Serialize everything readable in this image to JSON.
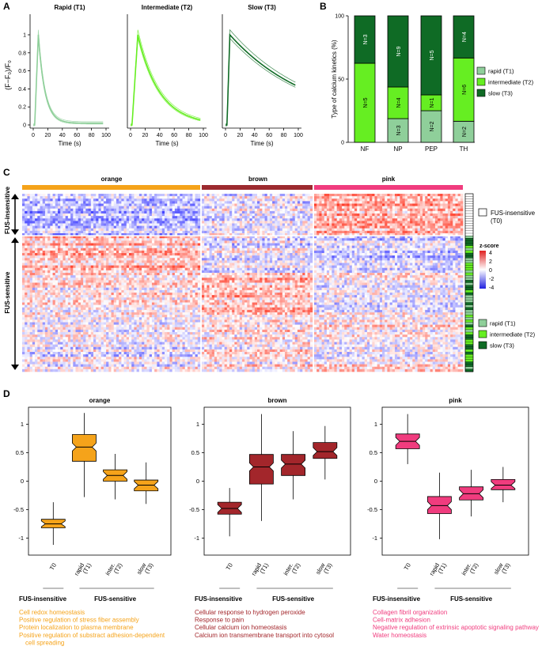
{
  "panels": {
    "A": "A",
    "B": "B",
    "C": "C",
    "D": "D"
  },
  "panel_a": {
    "ylabel": "(F−F₀)/F₀",
    "xlabel": "Time (s)",
    "yticks": [
      "0",
      "0.2",
      "0.4",
      "0.6",
      "0.8",
      "1"
    ],
    "xticks": [
      "0",
      "20",
      "40",
      "60",
      "80",
      "100"
    ],
    "plots": [
      {
        "title": "Rapid (T1)",
        "color": "#8fcf9a",
        "peak_t": 7,
        "decay": 9,
        "plateau": 0.02
      },
      {
        "title": "Intermediate (T2)",
        "color": "#66ee22",
        "peak_t": 10,
        "decay": 30,
        "plateau": 0.0
      },
      {
        "title": "Slow (T3)",
        "color": "#0f6b25",
        "peak_t": 6,
        "decay": 110,
        "plateau": 0.0
      }
    ]
  },
  "chart_data": [
    {
      "type": "bar",
      "title": "Type of calcium kinetics",
      "ylabel": "Type of calcium kinetics (%)",
      "yticks": [
        "0",
        "50",
        "100"
      ],
      "ylim": [
        0,
        100
      ],
      "categories": [
        "NF",
        "NP",
        "PEP",
        "TH"
      ],
      "series": [
        {
          "name": "rapid (T1)",
          "color": "#8fcf9a",
          "values": [
            0,
            18.75,
            25,
            16.67
          ],
          "labels": [
            "",
            "N=3",
            "N=2",
            "N=2"
          ]
        },
        {
          "name": "intermediate (T2)",
          "color": "#66ee22",
          "values": [
            62.5,
            25,
            12.5,
            50
          ],
          "labels": [
            "N=5",
            "N=4",
            "N=1",
            "N=6"
          ]
        },
        {
          "name": "slow (T3)",
          "color": "#0f6b25",
          "values": [
            37.5,
            56.25,
            62.5,
            33.33
          ],
          "labels": [
            "N=3",
            "N=9",
            "N=5",
            "N=4"
          ]
        }
      ]
    },
    {
      "type": "box",
      "title": "orange",
      "color": "#f5a31a",
      "categories": [
        "T0",
        "rapid (T1)",
        "inter. (T2)",
        "slow (T3)"
      ],
      "whisker_low": [
        -1.12,
        -0.28,
        -0.32,
        -0.4
      ],
      "q1": [
        -0.82,
        0.35,
        0.0,
        -0.17
      ],
      "median": [
        -0.75,
        0.6,
        0.1,
        -0.07
      ],
      "q3": [
        -0.67,
        0.82,
        0.2,
        0.02
      ],
      "whisker_high": [
        -0.37,
        1.2,
        0.48,
        0.33
      ],
      "ylim": [
        -1.3,
        1.3
      ],
      "yticks": [
        "-1",
        "-0.5",
        "0",
        "0.5",
        "1"
      ]
    },
    {
      "type": "box",
      "title": "brown",
      "color": "#a3262b",
      "categories": [
        "T0",
        "rapid (T1)",
        "inter. (T2)",
        "slow (T3)"
      ],
      "whisker_low": [
        -0.97,
        -0.7,
        -0.32,
        0.03
      ],
      "q1": [
        -0.58,
        -0.05,
        0.1,
        0.4
      ],
      "median": [
        -0.48,
        0.25,
        0.3,
        0.52
      ],
      "q3": [
        -0.37,
        0.47,
        0.47,
        0.68
      ],
      "whisker_high": [
        -0.12,
        1.18,
        0.88,
        0.97
      ],
      "ylim": [
        -1.3,
        1.3
      ],
      "yticks": [
        "-1",
        "-0.5",
        "0",
        "0.5",
        "1"
      ]
    },
    {
      "type": "box",
      "title": "pink",
      "color": "#f03c7e",
      "categories": [
        "T0",
        "rapid (T1)",
        "inter. (T2)",
        "slow (T3)"
      ],
      "whisker_low": [
        0.3,
        -1.02,
        -0.62,
        -0.37
      ],
      "q1": [
        0.57,
        -0.57,
        -0.33,
        -0.15
      ],
      "median": [
        0.7,
        -0.43,
        -0.22,
        -0.07
      ],
      "q3": [
        0.83,
        -0.27,
        -0.1,
        0.03
      ],
      "whisker_high": [
        1.18,
        0.15,
        0.2,
        0.25
      ],
      "ylim": [
        -1.3,
        1.3
      ],
      "yticks": [
        "-1",
        "-0.5",
        "0",
        "0.5",
        "1"
      ]
    }
  ],
  "panel_b_legend": [
    "rapid (T1)",
    "intermediate (T2)",
    "slow (T3)"
  ],
  "panel_c": {
    "clusters": [
      {
        "name": "orange",
        "color": "#f5a31a"
      },
      {
        "name": "brown",
        "color": "#9c2a2f"
      },
      {
        "name": "pink",
        "color": "#f03c7e"
      }
    ],
    "row_labels": {
      "insensitive": "FUS-insensitive",
      "sensitive": "FUS-sensitive"
    },
    "legend_t0": [
      "FUS-insensitive",
      "(T0)"
    ],
    "zscore_title": "z-score",
    "zscore_ticks": [
      "4",
      "2",
      "0",
      "-2",
      "-4"
    ],
    "kinetics_legend": [
      "rapid (T1)",
      "intermediate (T2)",
      "slow (T3)"
    ]
  },
  "panel_d": {
    "group_insensitive": "FUS-insensitive",
    "group_sensitive": "FUS-sensitive",
    "xlabels": [
      [
        "T0"
      ],
      [
        "rapid",
        "(T1)"
      ],
      [
        "inter.",
        "(T2)"
      ],
      [
        "slow",
        "(T3)"
      ]
    ],
    "go_terms": [
      [
        "Cell redox homeostasis",
        "Positive regulation of stress fiber assembly",
        "Protein localization to plasma membrane",
        "Positive regulation of substract adhesion-dependent",
        "cell spreading"
      ],
      [
        "Cellular response to hydrogen peroxide",
        "Response to pain",
        "Cellular calcium ion homeostasis",
        "Calcium ion transmembrane transport into cytosol"
      ],
      [
        "Collagen fibril organization",
        "Cell-matrix adhesion",
        "Negative regulation of extrinsic apoptotic signaling pathway",
        "Water homeostasis"
      ]
    ]
  }
}
